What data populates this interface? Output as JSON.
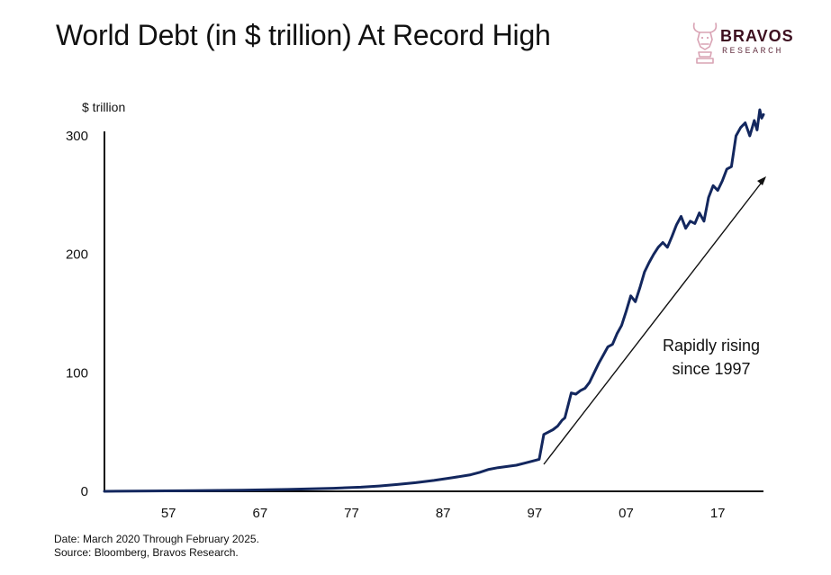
{
  "header": {
    "title": "World Debt (in $ trillion) At Record High"
  },
  "brand": {
    "name": "BRAVOS",
    "tagline": "RESEARCH",
    "color": "#3d1020",
    "accent": "#d9a3b4",
    "logo_icon": "bull-head-knight-icon"
  },
  "footer": {
    "date_note": "Date: March 2020 Through February 2025.",
    "source_note": "Source: Bloomberg, Bravos Research."
  },
  "chart_data": {
    "type": "line",
    "title": "World Debt (in $ trillion) At Record High",
    "ylabel": "$ trillion",
    "xlabel": "",
    "ylim": [
      0,
      300
    ],
    "xlim": [
      1950,
      2022
    ],
    "yticks": [
      0,
      100,
      200,
      300
    ],
    "xticks": [
      {
        "value": 1957,
        "label": "57"
      },
      {
        "value": 1967,
        "label": "67"
      },
      {
        "value": 1977,
        "label": "77"
      },
      {
        "value": 1987,
        "label": "87"
      },
      {
        "value": 1997,
        "label": "97"
      },
      {
        "value": 2007,
        "label": "07"
      },
      {
        "value": 2017,
        "label": "17"
      }
    ],
    "grid": false,
    "line_color": "#13275e",
    "series": [
      {
        "x": [
          1950,
          1955,
          1960,
          1965,
          1970,
          1975,
          1978,
          1980,
          1982,
          1984,
          1986,
          1988,
          1990,
          1991,
          1992,
          1993,
          1994,
          1995,
          1996,
          1997,
          1997.5,
          1998,
          1998.5,
          1999,
          1999.5,
          2000,
          2000.3,
          2001,
          2001.5,
          2002,
          2002.5,
          2003,
          2003.5,
          2004,
          2004.5,
          2005,
          2005.5,
          2006,
          2006.5,
          2007,
          2007.5,
          2008,
          2008.5,
          2009,
          2009.5,
          2010,
          2010.5,
          2011,
          2011.5,
          2012,
          2012.5,
          2013,
          2013.5,
          2014,
          2014.5,
          2015,
          2015.5,
          2016,
          2016.5,
          2017,
          2017.5,
          2018,
          2018.5,
          2019,
          2019.5,
          2020,
          2020.5,
          2021,
          2021.3,
          2021.6,
          2021.8,
          2022
        ],
        "values": [
          0,
          0.3,
          0.6,
          1.0,
          1.6,
          2.6,
          3.5,
          4.5,
          5.8,
          7.3,
          9.2,
          11.5,
          14,
          16,
          18.5,
          20,
          21,
          22,
          24,
          26,
          27,
          48,
          50,
          52,
          55,
          60,
          62,
          83,
          82,
          85,
          87,
          92,
          100,
          108,
          115,
          122,
          124,
          133,
          140,
          152,
          165,
          160,
          172,
          185,
          193,
          200,
          206,
          210,
          206,
          215,
          225,
          232,
          222,
          228,
          226,
          235,
          228,
          248,
          258,
          254,
          262,
          272,
          274,
          300,
          307,
          311,
          300,
          313,
          305,
          322,
          315,
          318
        ]
      }
    ],
    "annotations": [
      {
        "text_line1": "Rapidly rising",
        "text_line2": "since 1997"
      }
    ]
  }
}
